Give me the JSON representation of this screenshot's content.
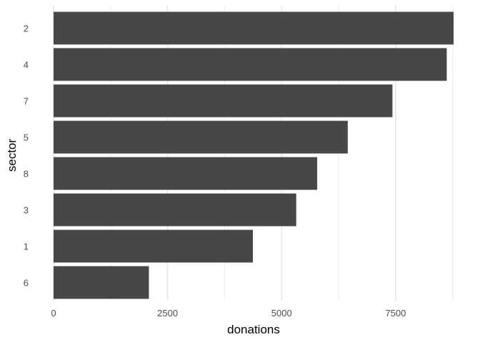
{
  "chart_data": {
    "type": "bar",
    "orientation": "horizontal",
    "categories": [
      "2",
      "4",
      "7",
      "5",
      "8",
      "3",
      "1",
      "6"
    ],
    "values": [
      8770,
      8620,
      7430,
      6450,
      5780,
      5320,
      4370,
      2090
    ],
    "xlabel": "donations",
    "ylabel": "sector",
    "xlim": [
      0,
      8770
    ],
    "x_ticks": [
      0,
      2500,
      5000,
      7500
    ],
    "x_tick_labels": [
      "0",
      "2500",
      "5000",
      "7500"
    ],
    "grid": true,
    "bar_color": "#474747",
    "grid_color": "#ebebeb"
  }
}
